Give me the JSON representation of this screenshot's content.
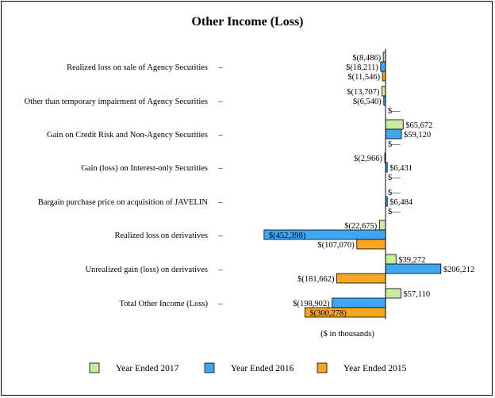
{
  "chart_data": {
    "type": "bar",
    "orientation": "horizontal",
    "title": "Other Income (Loss)",
    "xlabel": "($ in thousands)",
    "categories": [
      "Realized loss on sale of Agency Securities",
      "Other than temporary impairment of Agency Securities",
      "Gain on Credit Risk and Non-Agency Securities",
      "Gain (loss) on Interest-only Securities",
      "Bargain purchase price on acquisition of JAVELIN",
      "Realized loss on derivatives",
      "Unrealized gain (loss) on derivatives",
      "Total Other Income (Loss)"
    ],
    "series": [
      {
        "name": "Year Ended 2017",
        "color": "#c6eea0",
        "values": [
          -8486,
          -13707,
          65672,
          -2966,
          0,
          -22675,
          39272,
          57110
        ],
        "labels": [
          "$(8,486)",
          "$(13,707)",
          "$65,672",
          "$(2,966)",
          "$—",
          "$(22,675)",
          "$39,272",
          "$57,110"
        ]
      },
      {
        "name": "Year Ended 2016",
        "color": "#3ea6f2",
        "values": [
          -18211,
          -6540,
          59120,
          6431,
          6484,
          -452398,
          206212,
          -198902
        ],
        "labels": [
          "$(18,211)",
          "$(6,540)",
          "$59,120",
          "$6,431",
          "$6,484",
          "$(452,398)",
          "$206,212",
          "$(198,902)"
        ]
      },
      {
        "name": "Year Ended 2015",
        "color": "#f5a623",
        "values": [
          -11546,
          0,
          0,
          0,
          0,
          -107070,
          -181662,
          -300278
        ],
        "labels": [
          "$(11,546)",
          "$—",
          "$—",
          "$—",
          "$—",
          "$(107,070)",
          "$(181,662)",
          "$(300,278)"
        ]
      }
    ],
    "xlim": [
      -460000,
      215000
    ],
    "grid": false,
    "legend_position": "bottom"
  }
}
